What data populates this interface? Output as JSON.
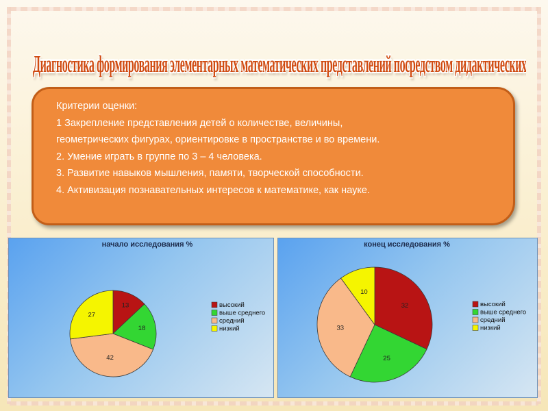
{
  "slide": {
    "title": "Диагностика формирования элементарных математических представлений посредством дидактических игр у детей среднего, старшего дошкольного возраста.",
    "criteria": {
      "heading": "Критерии оценки:",
      "lines": [
        "1 Закрепление  представления детей о количестве, величины,",
        "геометрических фигурах, ориентировке в пространстве и во времени.",
        "2.   Умение играть в группе по 3 – 4 человека.",
        "3.   Развитие навыков мышления, памяти, творческой способности.",
        "4.  Активизация познавательных интересов к математике, как науке."
      ]
    }
  },
  "colors": {
    "high": "#b81414",
    "above_average": "#33d633",
    "average": "#f9b98a",
    "low": "#f5f500",
    "criteria_box": "#f08a3a",
    "title": "#d04a10"
  },
  "chart_data": [
    {
      "type": "pie",
      "title": "начало  исследования %",
      "legend_position": "right",
      "categories": [
        "высокий",
        "выше среднего",
        "средний",
        "низкий"
      ],
      "values": [
        13,
        18,
        42,
        27
      ]
    },
    {
      "type": "pie",
      "title": "конец исследования %",
      "legend_position": "right",
      "categories": [
        "высокий",
        "выше среднего",
        "средний",
        "низкий"
      ],
      "values": [
        32,
        25,
        33,
        10
      ]
    }
  ]
}
